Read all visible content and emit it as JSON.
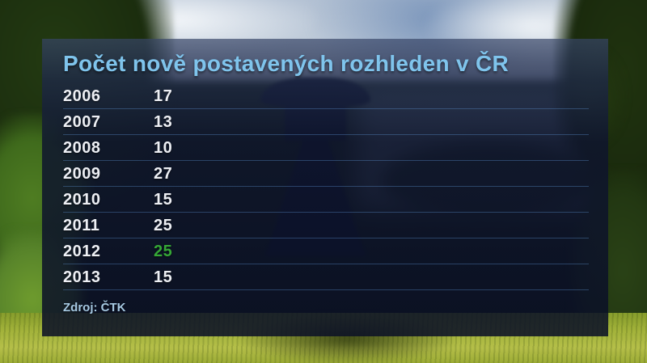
{
  "header": {
    "title": "Počet nově postavených rozhleden v ČR"
  },
  "source": "Zdroj: ČTK",
  "chart_data": {
    "type": "table",
    "title": "Počet nově postavených rozhleden v ČR",
    "categories": [
      "2006",
      "2007",
      "2008",
      "2009",
      "2010",
      "2011",
      "2012",
      "2013"
    ],
    "values": [
      17,
      13,
      10,
      27,
      15,
      25,
      25,
      15
    ],
    "highlight_year": "2012",
    "source": "Zdroj: ČTK",
    "legend_position": "none",
    "grid": "row-separators"
  },
  "colors": {
    "title_blue": "#7fc4ec",
    "value_white": "#edeff4",
    "highlight_green": "#35a736",
    "separator_blue": "#609cdc",
    "panel_navy": "#0e1430",
    "source_blue": "#a6c9e2"
  }
}
